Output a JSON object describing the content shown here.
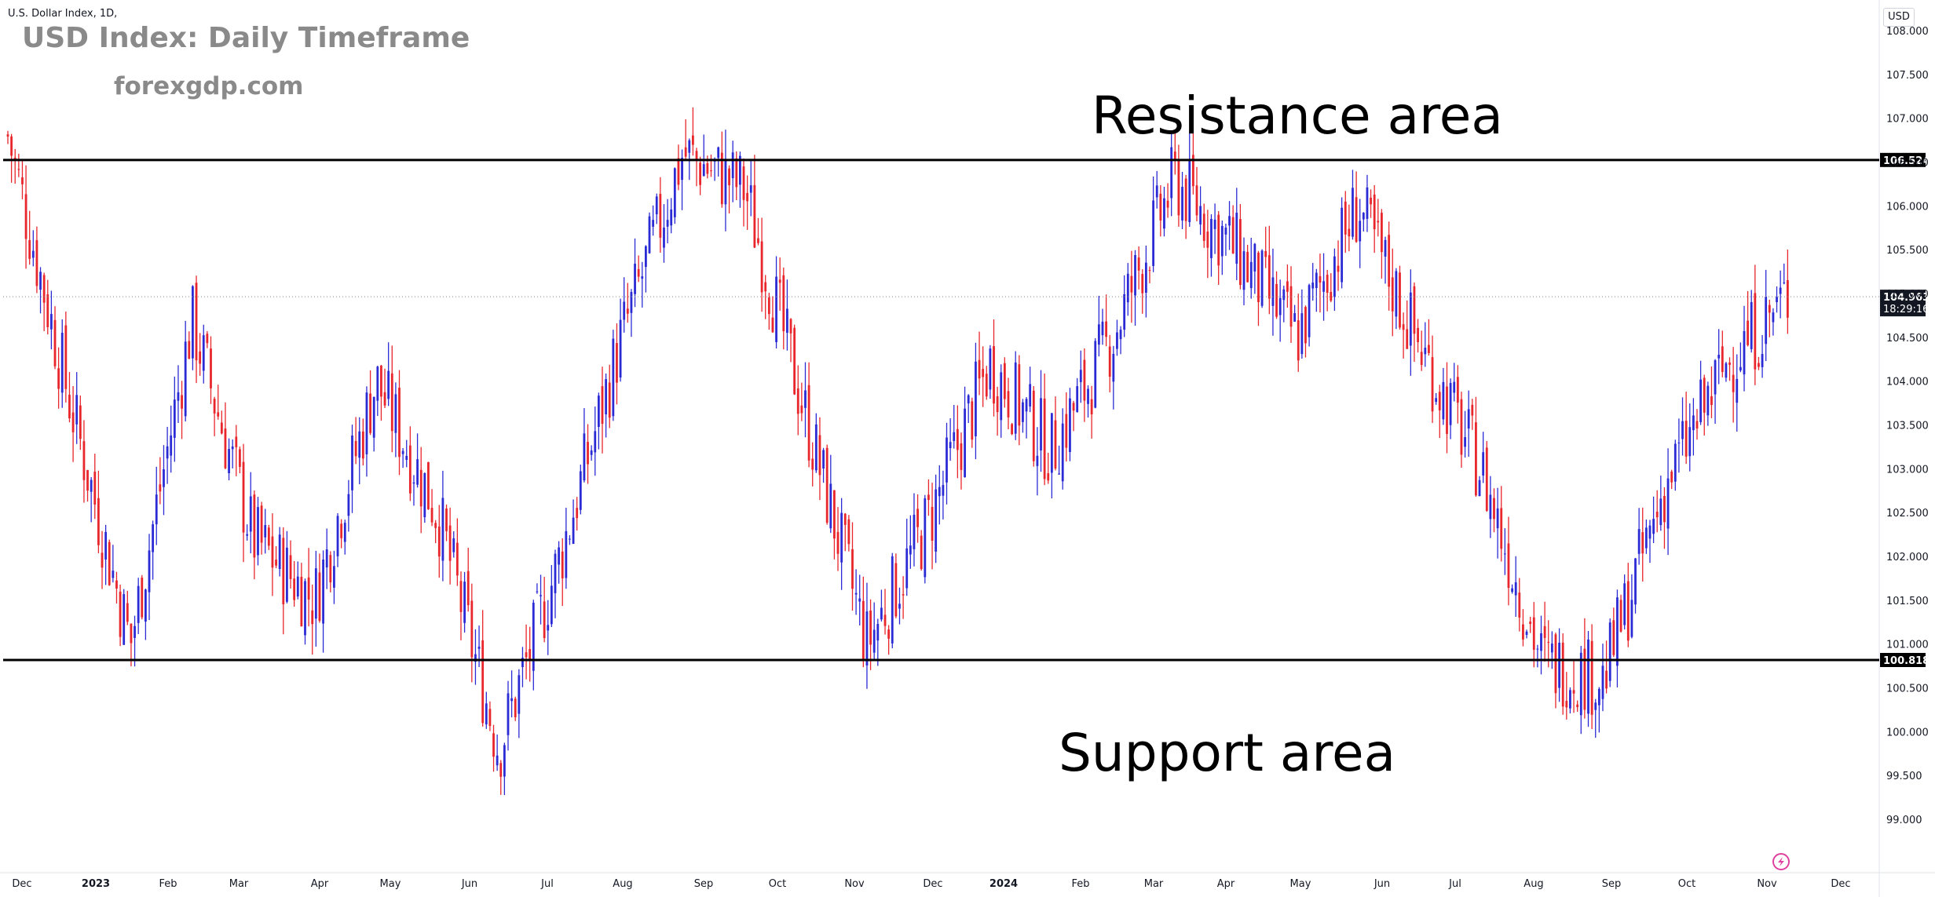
{
  "header": {
    "symbol_line": "U.S. Dollar Index, 1D,",
    "title": "USD Index: Daily Timeframe",
    "brand": "forexgdp.com",
    "currency_button": "USD"
  },
  "annotations": {
    "resistance_label": "Resistance area",
    "support_label": "Support area"
  },
  "colors": {
    "up": "#2b2bd6",
    "down": "#e8262b",
    "level_line": "#000000",
    "last_price_bg": "#131722"
  },
  "icons": [
    "lightning-icon"
  ],
  "chart_data": {
    "type": "candlestick",
    "title": "USD Index: Daily Timeframe",
    "xlabel": "",
    "ylabel": "",
    "ylim": [
      99.0,
      108.0
    ],
    "y_ticks": [
      "99.000",
      "99.500",
      "100.000",
      "100.500",
      "101.000",
      "101.500",
      "102.000",
      "102.500",
      "103.000",
      "103.500",
      "104.000",
      "104.500",
      "105.000",
      "105.500",
      "106.000",
      "106.500",
      "107.000",
      "107.500",
      "108.000"
    ],
    "x_ticks": [
      "Dec",
      "2023",
      "Feb",
      "Mar",
      "Apr",
      "May",
      "Jun",
      "Jul",
      "Aug",
      "Sep",
      "Oct",
      "Nov",
      "Dec",
      "2024",
      "Feb",
      "Mar",
      "Apr",
      "May",
      "Jun",
      "Jul",
      "Aug",
      "Sep",
      "Oct",
      "Nov",
      "Dec"
    ],
    "levels": [
      {
        "name": "Resistance area",
        "value": 106.524,
        "label": "106.524"
      },
      {
        "name": "Support area",
        "value": 100.818,
        "label": "100.818"
      }
    ],
    "last_price": {
      "value": 104.963,
      "label": "104.963",
      "countdown": "18:29:16"
    },
    "approx_close_path": [
      [
        "Dec",
        106.8
      ],
      [
        "2023",
        103.8
      ],
      [
        "Feb",
        101.0
      ],
      [
        "Mar",
        104.7
      ],
      [
        "Apr",
        102.2
      ],
      [
        "May",
        101.5
      ],
      [
        "Jun",
        104.0
      ],
      [
        "Jul",
        102.5
      ],
      [
        "Jul",
        99.8
      ],
      [
        "Aug",
        102.0
      ],
      [
        "Sep",
        104.5
      ],
      [
        "Oct",
        106.6
      ],
      [
        "Nov",
        106.2
      ],
      [
        "Dec",
        103.6
      ],
      [
        "Dec",
        101.0
      ],
      [
        "2024",
        102.4
      ],
      [
        "Feb",
        104.2
      ],
      [
        "Mar",
        103.2
      ],
      [
        "Apr",
        104.5
      ],
      [
        "Apr",
        106.3
      ],
      [
        "May",
        105.5
      ],
      [
        "Jun",
        104.5
      ],
      [
        "Jul",
        106.0
      ],
      [
        "Aug",
        104.4
      ],
      [
        "Aug",
        103.0
      ],
      [
        "Sep",
        100.8
      ],
      [
        "Oct",
        100.6
      ],
      [
        "Oct",
        102.8
      ],
      [
        "Nov",
        104.2
      ],
      [
        "Nov",
        104.963
      ]
    ]
  }
}
